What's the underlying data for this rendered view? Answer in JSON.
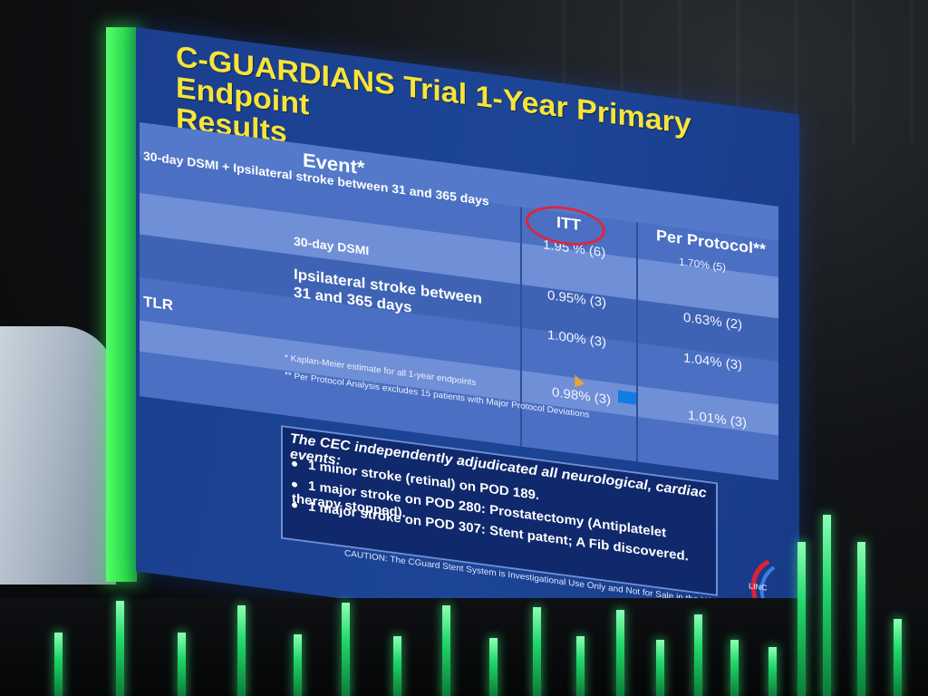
{
  "slide": {
    "title_line1": "C-GUARDIANS Trial 1-Year Primary Endpoint",
    "title_line2": "Results",
    "header_event": "Event*",
    "header_itt": "ITT",
    "header_pp": "Per Protocol**",
    "rows": [
      {
        "label": "30-day DSMI + Ipsilateral stroke between 31 and 365 days",
        "itt": "1.95 % (6)",
        "pp": "1.70% (5)"
      },
      {
        "label": "30-day DSMI",
        "itt": "0.95% (3)",
        "pp": "0.63% (2)"
      },
      {
        "label": "Ipsilateral stroke between 31 and 365 days",
        "itt": "1.00% (3)",
        "pp": "1.04% (3)"
      },
      {
        "label": "TLR",
        "itt": "0.98% (3)",
        "pp": "1.01% (3)"
      }
    ],
    "footnote1": "* Kaplan-Meier estimate for all 1-year endpoints",
    "footnote2": "** Per Protocol Analysis excludes 15 patients with Major Protocol Deviations",
    "callout_title": "The CEC independently adjudicated all neurological, cardiac events:",
    "callout_items": [
      "1 minor stroke (retinal) on POD 189.",
      "1 major  stroke on POD 280: Prostatectomy (Antiplatelet therapy stopped).",
      "1 major  stroke on POD 307: Stent patent; A Fib discovered."
    ],
    "caution": "CAUTION: The CGuard Stent System is Investigational Use Only and Not for Sale in the USA",
    "logo_text": "LINC"
  },
  "colors": {
    "title": "#f7e43a",
    "slide_bg": "#1d4596",
    "highlight_circle": "#e3243a",
    "stage_green": "#2ee04a"
  }
}
